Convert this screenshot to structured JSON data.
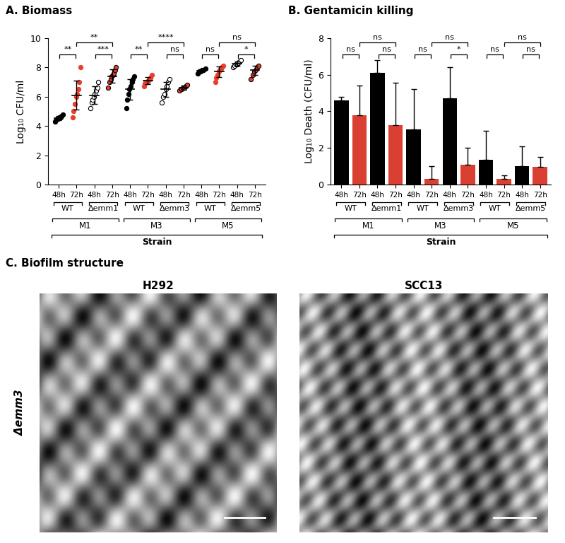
{
  "chart_data": [
    {
      "type": "scatter",
      "title": "A. Biomass",
      "y_label": "Log₁₀ CFU/ml",
      "categories": [
        "48h",
        "72h",
        "48h",
        "72h",
        "48h",
        "72h",
        "48h",
        "72h",
        "48h",
        "72h",
        "48h",
        "72h"
      ],
      "genotypes": [
        "WT",
        "WT",
        "Δemm1",
        "Δemm1",
        "WT",
        "WT",
        "Δemm3",
        "Δemm3",
        "WT",
        "WT",
        "Δemm5",
        "Δemm5"
      ],
      "strains": [
        "M1",
        "M1",
        "M1",
        "M1",
        "M3",
        "M3",
        "M3",
        "M3",
        "M5",
        "M5",
        "M5",
        "M5"
      ],
      "group_label": "Strain",
      "values": [
        [
          4.3,
          4.4,
          4.5,
          4.5,
          4.6,
          4.6,
          4.7,
          4.8
        ],
        [
          4.6,
          5.0,
          5.5,
          6.0,
          6.2,
          6.5,
          7.0,
          8.0
        ],
        [
          5.2,
          5.6,
          5.8,
          6.0,
          6.2,
          6.4,
          6.6,
          7.0
        ],
        [
          6.6,
          7.0,
          7.2,
          7.4,
          7.5,
          7.6,
          7.8,
          8.0
        ],
        [
          5.2,
          5.8,
          6.2,
          6.5,
          6.7,
          7.0,
          7.2,
          7.4
        ],
        [
          6.7,
          6.9,
          7.0,
          7.0,
          7.1,
          7.2,
          7.3,
          7.5
        ],
        [
          5.6,
          6.0,
          6.2,
          6.5,
          6.7,
          7.0,
          7.2
        ],
        [
          6.4,
          6.5,
          6.6,
          6.6,
          6.7,
          6.8
        ],
        [
          7.6,
          7.7,
          7.7,
          7.8,
          7.8,
          7.9
        ],
        [
          7.0,
          7.3,
          7.5,
          7.7,
          7.8,
          7.9,
          8.0,
          8.1
        ],
        [
          8.0,
          8.1,
          8.2,
          8.2,
          8.3,
          8.4,
          8.5
        ],
        [
          7.2,
          7.5,
          7.7,
          7.8,
          8.0,
          8.1
        ]
      ],
      "mean": [
        4.55,
        6.1,
        6.1,
        7.4,
        6.5,
        7.1,
        6.5,
        6.6,
        7.75,
        7.7,
        8.25,
        7.8
      ],
      "sd": [
        0.15,
        1.0,
        0.6,
        0.45,
        0.7,
        0.25,
        0.5,
        0.15,
        0.1,
        0.35,
        0.15,
        0.3
      ],
      "colors": [
        "#000000",
        "#e8402f",
        "#ffffff",
        "#e8402f",
        "#000000",
        "#e8402f",
        "#ffffff",
        "#e8402f",
        "#000000",
        "#e8402f",
        "#ffffff",
        "#e8402f"
      ],
      "ylim": [
        0,
        10
      ],
      "yticks": [
        0,
        2,
        4,
        6,
        8,
        10
      ],
      "comparisons": [
        {
          "between": [
            0,
            1
          ],
          "label": "**"
        },
        {
          "between": [
            2,
            3
          ],
          "label": "***"
        },
        {
          "between": [
            1,
            3
          ],
          "label": "**"
        },
        {
          "between": [
            4,
            5
          ],
          "label": "**"
        },
        {
          "between": [
            6,
            7
          ],
          "label": "ns"
        },
        {
          "between": [
            5,
            7
          ],
          "label": "****"
        },
        {
          "between": [
            8,
            9
          ],
          "label": "ns"
        },
        {
          "between": [
            10,
            11
          ],
          "label": "*"
        },
        {
          "between": [
            9,
            11
          ],
          "label": "ns"
        }
      ]
    },
    {
      "type": "bar",
      "title": "B. Gentamicin killing",
      "y_label": "Log₁₀ Death (CFU/ml)",
      "categories": [
        "48h",
        "72h",
        "48h",
        "72h",
        "48h",
        "72h",
        "48h",
        "72h",
        "48h",
        "72h",
        "48h",
        "72h"
      ],
      "genotypes": [
        "WT",
        "WT",
        "Δemm1",
        "Δemm1",
        "WT",
        "WT",
        "Δemm3",
        "Δemm3",
        "WT",
        "WT",
        "Δemm5",
        "Δemm5"
      ],
      "strains": [
        "M1",
        "M1",
        "M1",
        "M1",
        "M3",
        "M3",
        "M3",
        "M3",
        "M5",
        "M5",
        "M5",
        "M5"
      ],
      "group_label": "Strain",
      "values": [
        4.6,
        3.8,
        6.1,
        3.25,
        3.0,
        0.3,
        4.7,
        1.1,
        1.35,
        0.3,
        1.0,
        0.95
      ],
      "error": [
        0.2,
        1.6,
        0.7,
        2.3,
        2.2,
        0.7,
        1.7,
        0.9,
        1.6,
        0.2,
        1.1,
        0.55
      ],
      "colors": [
        "#000000",
        "#d94032",
        "#000000",
        "#d94032",
        "#000000",
        "#d94032",
        "#000000",
        "#d94032",
        "#000000",
        "#d94032",
        "#000000",
        "#d94032"
      ],
      "ylim": [
        0,
        8
      ],
      "yticks": [
        0,
        2,
        4,
        6,
        8
      ],
      "comparisons": [
        {
          "between": [
            0,
            1
          ],
          "label": "ns"
        },
        {
          "between": [
            2,
            3
          ],
          "label": "ns"
        },
        {
          "between": [
            1,
            3
          ],
          "label": "ns"
        },
        {
          "between": [
            4,
            5
          ],
          "label": "ns"
        },
        {
          "between": [
            6,
            7
          ],
          "label": "*"
        },
        {
          "between": [
            5,
            7
          ],
          "label": "ns"
        },
        {
          "between": [
            8,
            9
          ],
          "label": "ns"
        },
        {
          "between": [
            10,
            11
          ],
          "label": "ns"
        },
        {
          "between": [
            9,
            11
          ],
          "label": "ns"
        }
      ]
    }
  ],
  "panel_c": {
    "title": "C. Biofilm structure",
    "images": [
      "H292",
      "SCC13"
    ],
    "row_label": "Δemm3"
  }
}
